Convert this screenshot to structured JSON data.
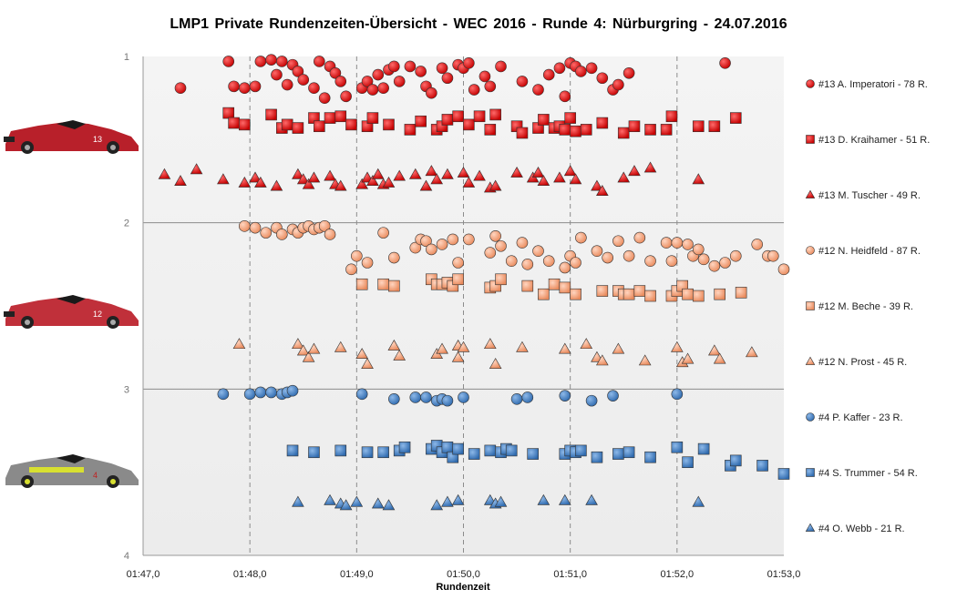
{
  "chart_data": {
    "type": "scatter",
    "title": "LMP1  Private  Rundenzeiten-Übersicht   - WEC 2016  - Runde 4:  Nürburgring   - 24.07.2016",
    "xlabel": "Rundenzeit",
    "ylabel": "",
    "xlim_seconds": [
      107,
      113
    ],
    "ylim": [
      1,
      4
    ],
    "y_inverted": true,
    "x_ticks": [
      "01:47,0",
      "01:48,0",
      "01:49,0",
      "01:50,0",
      "01:51,0",
      "01:52,0",
      "01:53,0"
    ],
    "y_ticks": [
      "1",
      "2",
      "3",
      "4"
    ],
    "grid": "vertical dashed at each minute tick, horizontal solid at y = 2, 3",
    "legend_position": "right",
    "series": [
      {
        "name": "#13 A. Imperatori - 78 R.",
        "marker": "circle",
        "color": "#e31c1c",
        "x": [
          107.35,
          107.8,
          107.85,
          107.95,
          108.05,
          108.1,
          108.2,
          108.25,
          108.3,
          108.35,
          108.4,
          108.45,
          108.5,
          108.6,
          108.65,
          108.7,
          108.75,
          108.8,
          108.85,
          108.9,
          109.05,
          109.1,
          109.15,
          109.2,
          109.25,
          109.3,
          109.35,
          109.4,
          109.5,
          109.6,
          109.65,
          109.7,
          109.8,
          109.85,
          109.95,
          110.0,
          110.05,
          110.1,
          110.2,
          110.25,
          110.35,
          110.55,
          110.7,
          110.8,
          110.9,
          110.95,
          111.0,
          111.05,
          111.1,
          111.2,
          111.3,
          111.4,
          111.45,
          111.55,
          112.45
        ],
        "y": [
          1.19,
          1.03,
          1.18,
          1.19,
          1.18,
          1.03,
          1.02,
          1.11,
          1.03,
          1.17,
          1.05,
          1.09,
          1.14,
          1.19,
          1.03,
          1.25,
          1.06,
          1.1,
          1.15,
          1.24,
          1.19,
          1.15,
          1.2,
          1.11,
          1.19,
          1.08,
          1.06,
          1.15,
          1.06,
          1.09,
          1.18,
          1.22,
          1.07,
          1.13,
          1.05,
          1.07,
          1.04,
          1.2,
          1.12,
          1.18,
          1.06,
          1.15,
          1.2,
          1.11,
          1.07,
          1.24,
          1.04,
          1.06,
          1.09,
          1.07,
          1.13,
          1.2,
          1.17,
          1.1,
          1.04
        ]
      },
      {
        "name": "#13 D. Kraihamer - 51 R.",
        "marker": "square",
        "color": "#e31c1c",
        "x": [
          107.8,
          107.85,
          107.95,
          108.2,
          108.3,
          108.35,
          108.45,
          108.6,
          108.65,
          108.75,
          108.85,
          108.95,
          109.1,
          109.15,
          109.3,
          109.5,
          109.6,
          109.75,
          109.8,
          109.85,
          109.95,
          110.05,
          110.15,
          110.25,
          110.3,
          110.5,
          110.55,
          110.7,
          110.75,
          110.85,
          110.9,
          110.95,
          111.0,
          111.05,
          111.15,
          111.3,
          111.5,
          111.6,
          111.75,
          111.9,
          111.95,
          112.2,
          112.35,
          112.55
        ],
        "y": [
          1.34,
          1.4,
          1.41,
          1.35,
          1.43,
          1.41,
          1.43,
          1.37,
          1.42,
          1.37,
          1.36,
          1.41,
          1.42,
          1.37,
          1.41,
          1.44,
          1.39,
          1.44,
          1.42,
          1.38,
          1.36,
          1.41,
          1.36,
          1.44,
          1.35,
          1.42,
          1.46,
          1.43,
          1.38,
          1.43,
          1.42,
          1.44,
          1.37,
          1.45,
          1.44,
          1.4,
          1.46,
          1.42,
          1.44,
          1.44,
          1.36,
          1.42,
          1.42,
          1.37
        ]
      },
      {
        "name": "#13 M. Tuscher - 49 R.",
        "marker": "triangle",
        "color": "#e31c1c",
        "x": [
          107.2,
          107.35,
          107.5,
          107.75,
          107.95,
          108.05,
          108.1,
          108.25,
          108.45,
          108.5,
          108.55,
          108.6,
          108.75,
          108.8,
          108.85,
          109.05,
          109.1,
          109.15,
          109.2,
          109.25,
          109.3,
          109.4,
          109.55,
          109.65,
          109.7,
          109.75,
          109.85,
          110.0,
          110.05,
          110.15,
          110.25,
          110.3,
          110.5,
          110.65,
          110.7,
          110.75,
          110.9,
          111.0,
          111.05,
          111.25,
          111.3,
          111.5,
          111.6,
          111.75,
          112.2
        ],
        "y": [
          1.71,
          1.75,
          1.68,
          1.74,
          1.76,
          1.73,
          1.76,
          1.78,
          1.71,
          1.74,
          1.77,
          1.73,
          1.72,
          1.77,
          1.78,
          1.77,
          1.73,
          1.75,
          1.71,
          1.77,
          1.76,
          1.72,
          1.71,
          1.78,
          1.69,
          1.74,
          1.71,
          1.7,
          1.76,
          1.72,
          1.79,
          1.78,
          1.7,
          1.73,
          1.7,
          1.75,
          1.73,
          1.69,
          1.74,
          1.78,
          1.81,
          1.73,
          1.69,
          1.67,
          1.74
        ]
      },
      {
        "name": "#12 N. Heidfeld - 87 R.",
        "marker": "circle",
        "color": "#f4a582",
        "x": [
          107.95,
          108.05,
          108.15,
          108.25,
          108.3,
          108.4,
          108.45,
          108.5,
          108.55,
          108.6,
          108.65,
          108.7,
          108.75,
          108.95,
          109.0,
          109.1,
          109.25,
          109.35,
          109.55,
          109.6,
          109.65,
          109.7,
          109.8,
          109.9,
          109.95,
          110.05,
          110.25,
          110.3,
          110.35,
          110.45,
          110.55,
          110.6,
          110.7,
          110.8,
          110.95,
          111.0,
          111.05,
          111.1,
          111.25,
          111.35,
          111.45,
          111.55,
          111.65,
          111.75,
          111.9,
          111.95,
          112.0,
          112.1,
          112.15,
          112.2,
          112.25,
          112.35,
          112.45,
          112.55,
          112.75,
          112.85,
          112.9,
          113.0
        ],
        "y": [
          2.02,
          2.03,
          2.06,
          2.03,
          2.07,
          2.04,
          2.06,
          2.03,
          2.02,
          2.04,
          2.03,
          2.02,
          2.07,
          2.28,
          2.2,
          2.24,
          2.06,
          2.21,
          2.15,
          2.1,
          2.11,
          2.16,
          2.13,
          2.1,
          2.24,
          2.1,
          2.18,
          2.08,
          2.14,
          2.23,
          2.12,
          2.25,
          2.17,
          2.23,
          2.27,
          2.2,
          2.24,
          2.09,
          2.17,
          2.21,
          2.11,
          2.2,
          2.09,
          2.23,
          2.12,
          2.23,
          2.12,
          2.13,
          2.2,
          2.16,
          2.22,
          2.26,
          2.24,
          2.2,
          2.13,
          2.2,
          2.2,
          2.28
        ]
      },
      {
        "name": "#12 M. Beche - 39 R.",
        "marker": "square",
        "color": "#f4a582",
        "x": [
          109.05,
          109.25,
          109.35,
          109.7,
          109.75,
          109.8,
          109.85,
          109.9,
          109.95,
          110.25,
          110.3,
          110.35,
          110.6,
          110.75,
          110.85,
          110.95,
          111.05,
          111.3,
          111.45,
          111.5,
          111.55,
          111.65,
          111.75,
          111.95,
          112.0,
          112.05,
          112.1,
          112.2,
          112.4,
          112.6
        ],
        "y": [
          2.37,
          2.37,
          2.38,
          2.34,
          2.37,
          2.37,
          2.36,
          2.38,
          2.34,
          2.39,
          2.38,
          2.34,
          2.38,
          2.43,
          2.37,
          2.39,
          2.43,
          2.41,
          2.41,
          2.43,
          2.43,
          2.41,
          2.44,
          2.44,
          2.41,
          2.38,
          2.43,
          2.44,
          2.43,
          2.42
        ]
      },
      {
        "name": "#12 N. Prost - 45 R.",
        "marker": "triangle",
        "color": "#f4a582",
        "x": [
          107.9,
          108.45,
          108.5,
          108.55,
          108.6,
          108.85,
          109.05,
          109.1,
          109.35,
          109.4,
          109.75,
          109.8,
          109.95,
          109.95,
          110.0,
          110.25,
          110.3,
          110.55,
          110.95,
          111.15,
          111.25,
          111.3,
          111.45,
          111.7,
          112.0,
          112.05,
          112.1,
          112.35,
          112.4,
          112.7
        ],
        "y": [
          2.73,
          2.73,
          2.77,
          2.81,
          2.76,
          2.75,
          2.79,
          2.85,
          2.74,
          2.8,
          2.79,
          2.76,
          2.81,
          2.74,
          2.75,
          2.73,
          2.85,
          2.75,
          2.76,
          2.73,
          2.81,
          2.83,
          2.76,
          2.83,
          2.75,
          2.84,
          2.82,
          2.77,
          2.82,
          2.78
        ]
      },
      {
        "name": "#4 P. Kaffer - 23 R.",
        "marker": "circle",
        "color": "#4a86c8",
        "x": [
          107.75,
          108.0,
          108.1,
          108.2,
          108.3,
          108.35,
          108.4,
          109.05,
          109.35,
          109.55,
          109.65,
          109.75,
          109.8,
          109.85,
          110.0,
          110.5,
          110.6,
          110.95,
          111.2,
          111.4,
          112.0
        ],
        "y": [
          3.03,
          3.03,
          3.02,
          3.02,
          3.03,
          3.02,
          3.01,
          3.03,
          3.06,
          3.05,
          3.05,
          3.07,
          3.06,
          3.07,
          3.05,
          3.06,
          3.05,
          3.04,
          3.07,
          3.04,
          3.03
        ]
      },
      {
        "name": "#4 S. Trummer - 54 R.",
        "marker": "square",
        "color": "#4a86c8",
        "x": [
          108.4,
          108.6,
          108.85,
          109.1,
          109.25,
          109.4,
          109.45,
          109.7,
          109.75,
          109.8,
          109.85,
          109.9,
          109.95,
          110.1,
          110.25,
          110.35,
          110.4,
          110.45,
          110.65,
          110.95,
          111.0,
          111.05,
          111.1,
          111.25,
          111.45,
          111.55,
          111.75,
          112.0,
          112.1,
          112.25,
          112.5,
          112.55,
          112.8,
          113.0
        ],
        "y": [
          3.37,
          3.38,
          3.37,
          3.38,
          3.38,
          3.37,
          3.35,
          3.36,
          3.34,
          3.38,
          3.35,
          3.41,
          3.36,
          3.39,
          3.37,
          3.38,
          3.36,
          3.37,
          3.39,
          3.39,
          3.37,
          3.38,
          3.37,
          3.41,
          3.39,
          3.38,
          3.41,
          3.35,
          3.44,
          3.36,
          3.46,
          3.43,
          3.46,
          3.51
        ]
      },
      {
        "name": "#4 O. Webb - 21 R.",
        "marker": "triangle",
        "color": "#4a86c8",
        "x": [
          108.45,
          108.75,
          108.85,
          108.9,
          109.0,
          109.2,
          109.3,
          109.75,
          109.85,
          109.95,
          110.25,
          110.3,
          110.35,
          110.75,
          110.95,
          111.2,
          112.2
        ],
        "y": [
          3.68,
          3.67,
          3.69,
          3.7,
          3.68,
          3.69,
          3.7,
          3.7,
          3.68,
          3.67,
          3.67,
          3.69,
          3.68,
          3.67,
          3.67,
          3.67,
          3.68
        ]
      }
    ]
  }
}
